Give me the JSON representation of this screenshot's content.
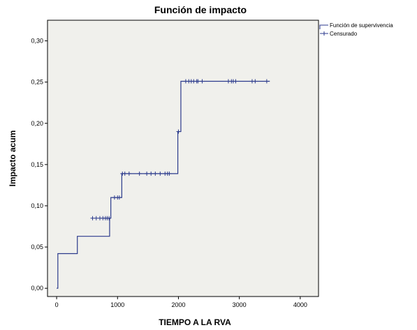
{
  "chart_data": {
    "type": "line",
    "title": "Función de impacto",
    "xlabel": "TIEMPO A LA RVA",
    "ylabel": "Impacto acum",
    "xlim": [
      -150,
      4300
    ],
    "ylim": [
      -0.01,
      0.325
    ],
    "x_ticks": [
      0,
      1000,
      2000,
      3000,
      4000
    ],
    "x_tick_labels": [
      "0",
      "1000",
      "2000",
      "3000",
      "4000"
    ],
    "y_ticks": [
      0.0,
      0.05,
      0.1,
      0.15,
      0.2,
      0.25,
      0.3
    ],
    "y_tick_labels": [
      "0,00",
      "0,05",
      "0,10",
      "0,15",
      "0,20",
      "0,25",
      "0,30"
    ],
    "grid": false,
    "legend_position": "top-right",
    "colors": {
      "line": "#2b3a8c",
      "plot_bg": "#f0f0ec",
      "axis": "#000000"
    },
    "series": [
      {
        "name": "Función de supervivencia",
        "step": true,
        "x": [
          0,
          20,
          320,
          340,
          870,
          890,
          1040,
          1070,
          1950,
          1990,
          2040,
          3500
        ],
        "y": [
          0.0,
          0.042,
          0.042,
          0.063,
          0.085,
          0.11,
          0.11,
          0.139,
          0.139,
          0.19,
          0.251,
          0.251
        ]
      },
      {
        "name": "Censurado",
        "marker": "+",
        "x": [
          590,
          650,
          710,
          760,
          800,
          830,
          860,
          950,
          1000,
          1030,
          1080,
          1120,
          1190,
          1360,
          1480,
          1550,
          1620,
          1700,
          1780,
          1820,
          1850,
          2000,
          2120,
          2170,
          2210,
          2250,
          2300,
          2320,
          2390,
          2820,
          2870,
          2900,
          2940,
          3210,
          3260,
          3450
        ],
        "y": [
          0.085,
          0.085,
          0.085,
          0.085,
          0.085,
          0.085,
          0.085,
          0.11,
          0.11,
          0.11,
          0.139,
          0.139,
          0.139,
          0.139,
          0.139,
          0.139,
          0.139,
          0.139,
          0.139,
          0.139,
          0.139,
          0.19,
          0.251,
          0.251,
          0.251,
          0.251,
          0.251,
          0.251,
          0.251,
          0.251,
          0.251,
          0.251,
          0.251,
          0.251,
          0.251,
          0.251
        ]
      }
    ]
  }
}
